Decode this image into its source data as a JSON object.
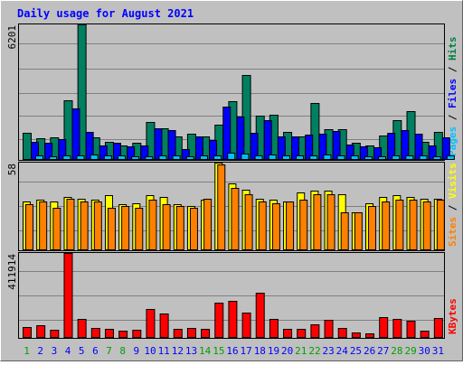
{
  "chart_data": {
    "type": "bar",
    "title": "Daily usage for August 2021",
    "categories": [
      "1",
      "2",
      "3",
      "4",
      "5",
      "6",
      "7",
      "8",
      "9",
      "10",
      "11",
      "12",
      "13",
      "14",
      "15",
      "16",
      "17",
      "18",
      "19",
      "20",
      "21",
      "22",
      "23",
      "24",
      "25",
      "26",
      "27",
      "28",
      "29",
      "30",
      "31"
    ],
    "weekend_days": [
      "1",
      "7",
      "8",
      "14",
      "15",
      "21",
      "22",
      "28",
      "29"
    ],
    "panels": [
      {
        "name": "hits-files-pages",
        "max_label": "6201",
        "ymax": 6201,
        "right_labels": [
          {
            "text": "Pages",
            "color": "#00c0ff"
          },
          {
            "text": " / ",
            "color": "#000000"
          },
          {
            "text": "Files",
            "color": "#0000ff"
          },
          {
            "text": " / ",
            "color": "#000000"
          },
          {
            "text": "Hits",
            "color": "#008040"
          }
        ],
        "series": [
          {
            "name": "Hits",
            "color": "#008060",
            "values": [
              1220,
              960,
              980,
              2700,
              6201,
              1000,
              800,
              640,
              730,
              1720,
              1420,
              1020,
              1160,
              1050,
              1600,
              2680,
              3850,
              2000,
              2060,
              1240,
              1060,
              2600,
              1360,
              1380,
              750,
              640,
              1080,
              1800,
              2220,
              800,
              1250
            ]
          },
          {
            "name": "Files",
            "color": "#0000ff",
            "values": [
              800,
              760,
              900,
              2340,
              1240,
              640,
              760,
              570,
              620,
              1400,
              1320,
              450,
              1020,
              860,
              2400,
              1960,
              1220,
              1780,
              1020,
              1020,
              1120,
              1160,
              1300,
              680,
              600,
              560,
              1200,
              1330,
              1150,
              620,
              1000
            ]
          },
          {
            "name": "Pages",
            "color": "#00c0ff",
            "values": [
              170,
              140,
              150,
              170,
              210,
              160,
              150,
              130,
              140,
              160,
              150,
              140,
              150,
              150,
              280,
              240,
              180,
              200,
              170,
              160,
              150,
              190,
              170,
              150,
              130,
              120,
              150,
              180,
              160,
              140,
              170
            ]
          }
        ]
      },
      {
        "name": "visits-sites",
        "max_label": "58",
        "ymax": 58,
        "right_labels": [
          {
            "text": "Sites",
            "color": "#ff8000"
          },
          {
            "text": " / ",
            "color": "#000000"
          },
          {
            "text": "Visits",
            "color": "#ffff00"
          }
        ],
        "series": [
          {
            "name": "Visits",
            "color": "#ffff00",
            "values": [
              32,
              33,
              32,
              35,
              34,
              33,
              36,
              30,
              31,
              36,
              35,
              30,
              29,
              33,
              58,
              44,
              40,
              34,
              33,
              32,
              38,
              39,
              39,
              37,
              25,
              31,
              35,
              36,
              35,
              34,
              34
            ]
          },
          {
            "name": "Sites",
            "color": "#ff8000",
            "values": [
              30,
              32,
              28,
              34,
              32,
              32,
              28,
              29,
              28,
              33,
              30,
              29,
              28,
              34,
              57,
              41,
              37,
              32,
              31,
              32,
              33,
              37,
              37,
              25,
              25,
              29,
              32,
              33,
              33,
              32,
              33
            ]
          }
        ]
      },
      {
        "name": "kbytes",
        "max_label": "411914",
        "ymax": 411914,
        "right_labels": [
          {
            "text": "KBytes",
            "color": "#ff0000"
          }
        ],
        "series": [
          {
            "name": "KBytes",
            "color": "#ff0000",
            "values": [
              50000,
              58000,
              36000,
              411914,
              88000,
              46000,
              40000,
              30000,
              34000,
              138000,
              116000,
              38000,
              46000,
              40000,
              168000,
              176000,
              118000,
              218000,
              90000,
              42000,
              42000,
              64000,
              84000,
              46000,
              22000,
              18000,
              96000,
              90000,
              80000,
              32000,
              94000
            ]
          }
        ]
      }
    ]
  },
  "colors": {
    "background": "#c0c0c0",
    "plot_background": "#c0c0c0",
    "gridline": "#808080",
    "title": "#0000ff",
    "weekday_label": "#0000ff",
    "weekend_label": "#00a000",
    "bar_outline": "#000000"
  }
}
